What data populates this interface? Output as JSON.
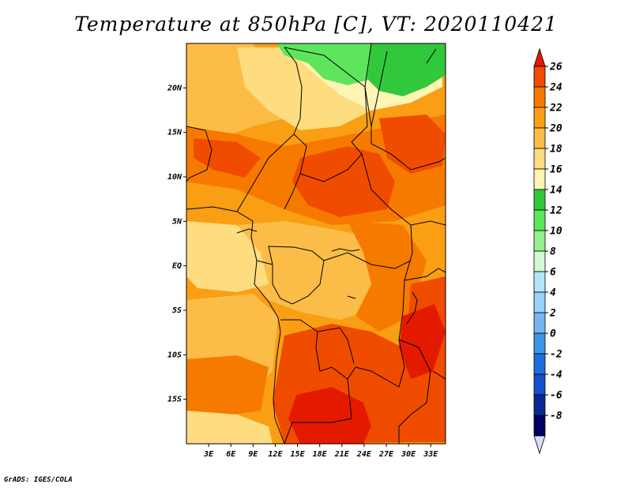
{
  "title": "Temperature at 850hPa [C], VT: 2020110421",
  "credit": "GrADS: IGES/COLA",
  "map": {
    "lon_range": [
      0,
      35
    ],
    "lat_range": [
      -20,
      25
    ],
    "lon_ticks": [
      {
        "value": 3,
        "label": "3E"
      },
      {
        "value": 6,
        "label": "6E"
      },
      {
        "value": 9,
        "label": "9E"
      },
      {
        "value": 12,
        "label": "12E"
      },
      {
        "value": 15,
        "label": "15E"
      },
      {
        "value": 18,
        "label": "18E"
      },
      {
        "value": 21,
        "label": "21E"
      },
      {
        "value": 24,
        "label": "24E"
      },
      {
        "value": 27,
        "label": "27E"
      },
      {
        "value": 30,
        "label": "30E"
      },
      {
        "value": 33,
        "label": "33E"
      }
    ],
    "lat_ticks": [
      {
        "value": 20,
        "label": "20N"
      },
      {
        "value": 15,
        "label": "15N"
      },
      {
        "value": 10,
        "label": "10N"
      },
      {
        "value": 5,
        "label": "5N"
      },
      {
        "value": 0,
        "label": "EQ"
      },
      {
        "value": -5,
        "label": "5S"
      },
      {
        "value": -10,
        "label": "10S"
      },
      {
        "value": -15,
        "label": "15S"
      }
    ]
  },
  "colorbar": {
    "labels": [
      "26",
      "24",
      "22",
      "20",
      "18",
      "16",
      "14",
      "12",
      "10",
      "8",
      "6",
      "4",
      "2",
      "0",
      "-2",
      "-4",
      "-6",
      "-8"
    ],
    "colors": [
      "#e41a00",
      "#f04c00",
      "#f77a00",
      "#fa9e14",
      "#fbbd47",
      "#fedc80",
      "#fef5b4",
      "#32c83c",
      "#5ee55c",
      "#96f08c",
      "#d2fad2",
      "#b4e6fa",
      "#96d2fa",
      "#78b4f0",
      "#3c96e6",
      "#1e6edc",
      "#1450c8",
      "#0a2896",
      "#000064",
      "#dcdcfa"
    ]
  },
  "regions": [
    {
      "name": "sahara-north-green",
      "color": "#5ee55c"
    },
    {
      "name": "sahara-northeast-green",
      "color": "#32c83c"
    },
    {
      "name": "niger-region",
      "color": "#fbbd47"
    },
    {
      "name": "sahel-band",
      "color": "#f77a00"
    },
    {
      "name": "central-african-republic",
      "color": "#f04c00"
    },
    {
      "name": "congo-basin",
      "color": "#fbbd47"
    },
    {
      "name": "gabon-coast",
      "color": "#fedc80"
    },
    {
      "name": "eastern-congo",
      "color": "#f77a00"
    },
    {
      "name": "angola-zambia",
      "color": "#f04c00"
    },
    {
      "name": "southern-hotspot",
      "color": "#e41a00"
    },
    {
      "name": "atlantic-south",
      "color": "#fa9e14"
    }
  ]
}
